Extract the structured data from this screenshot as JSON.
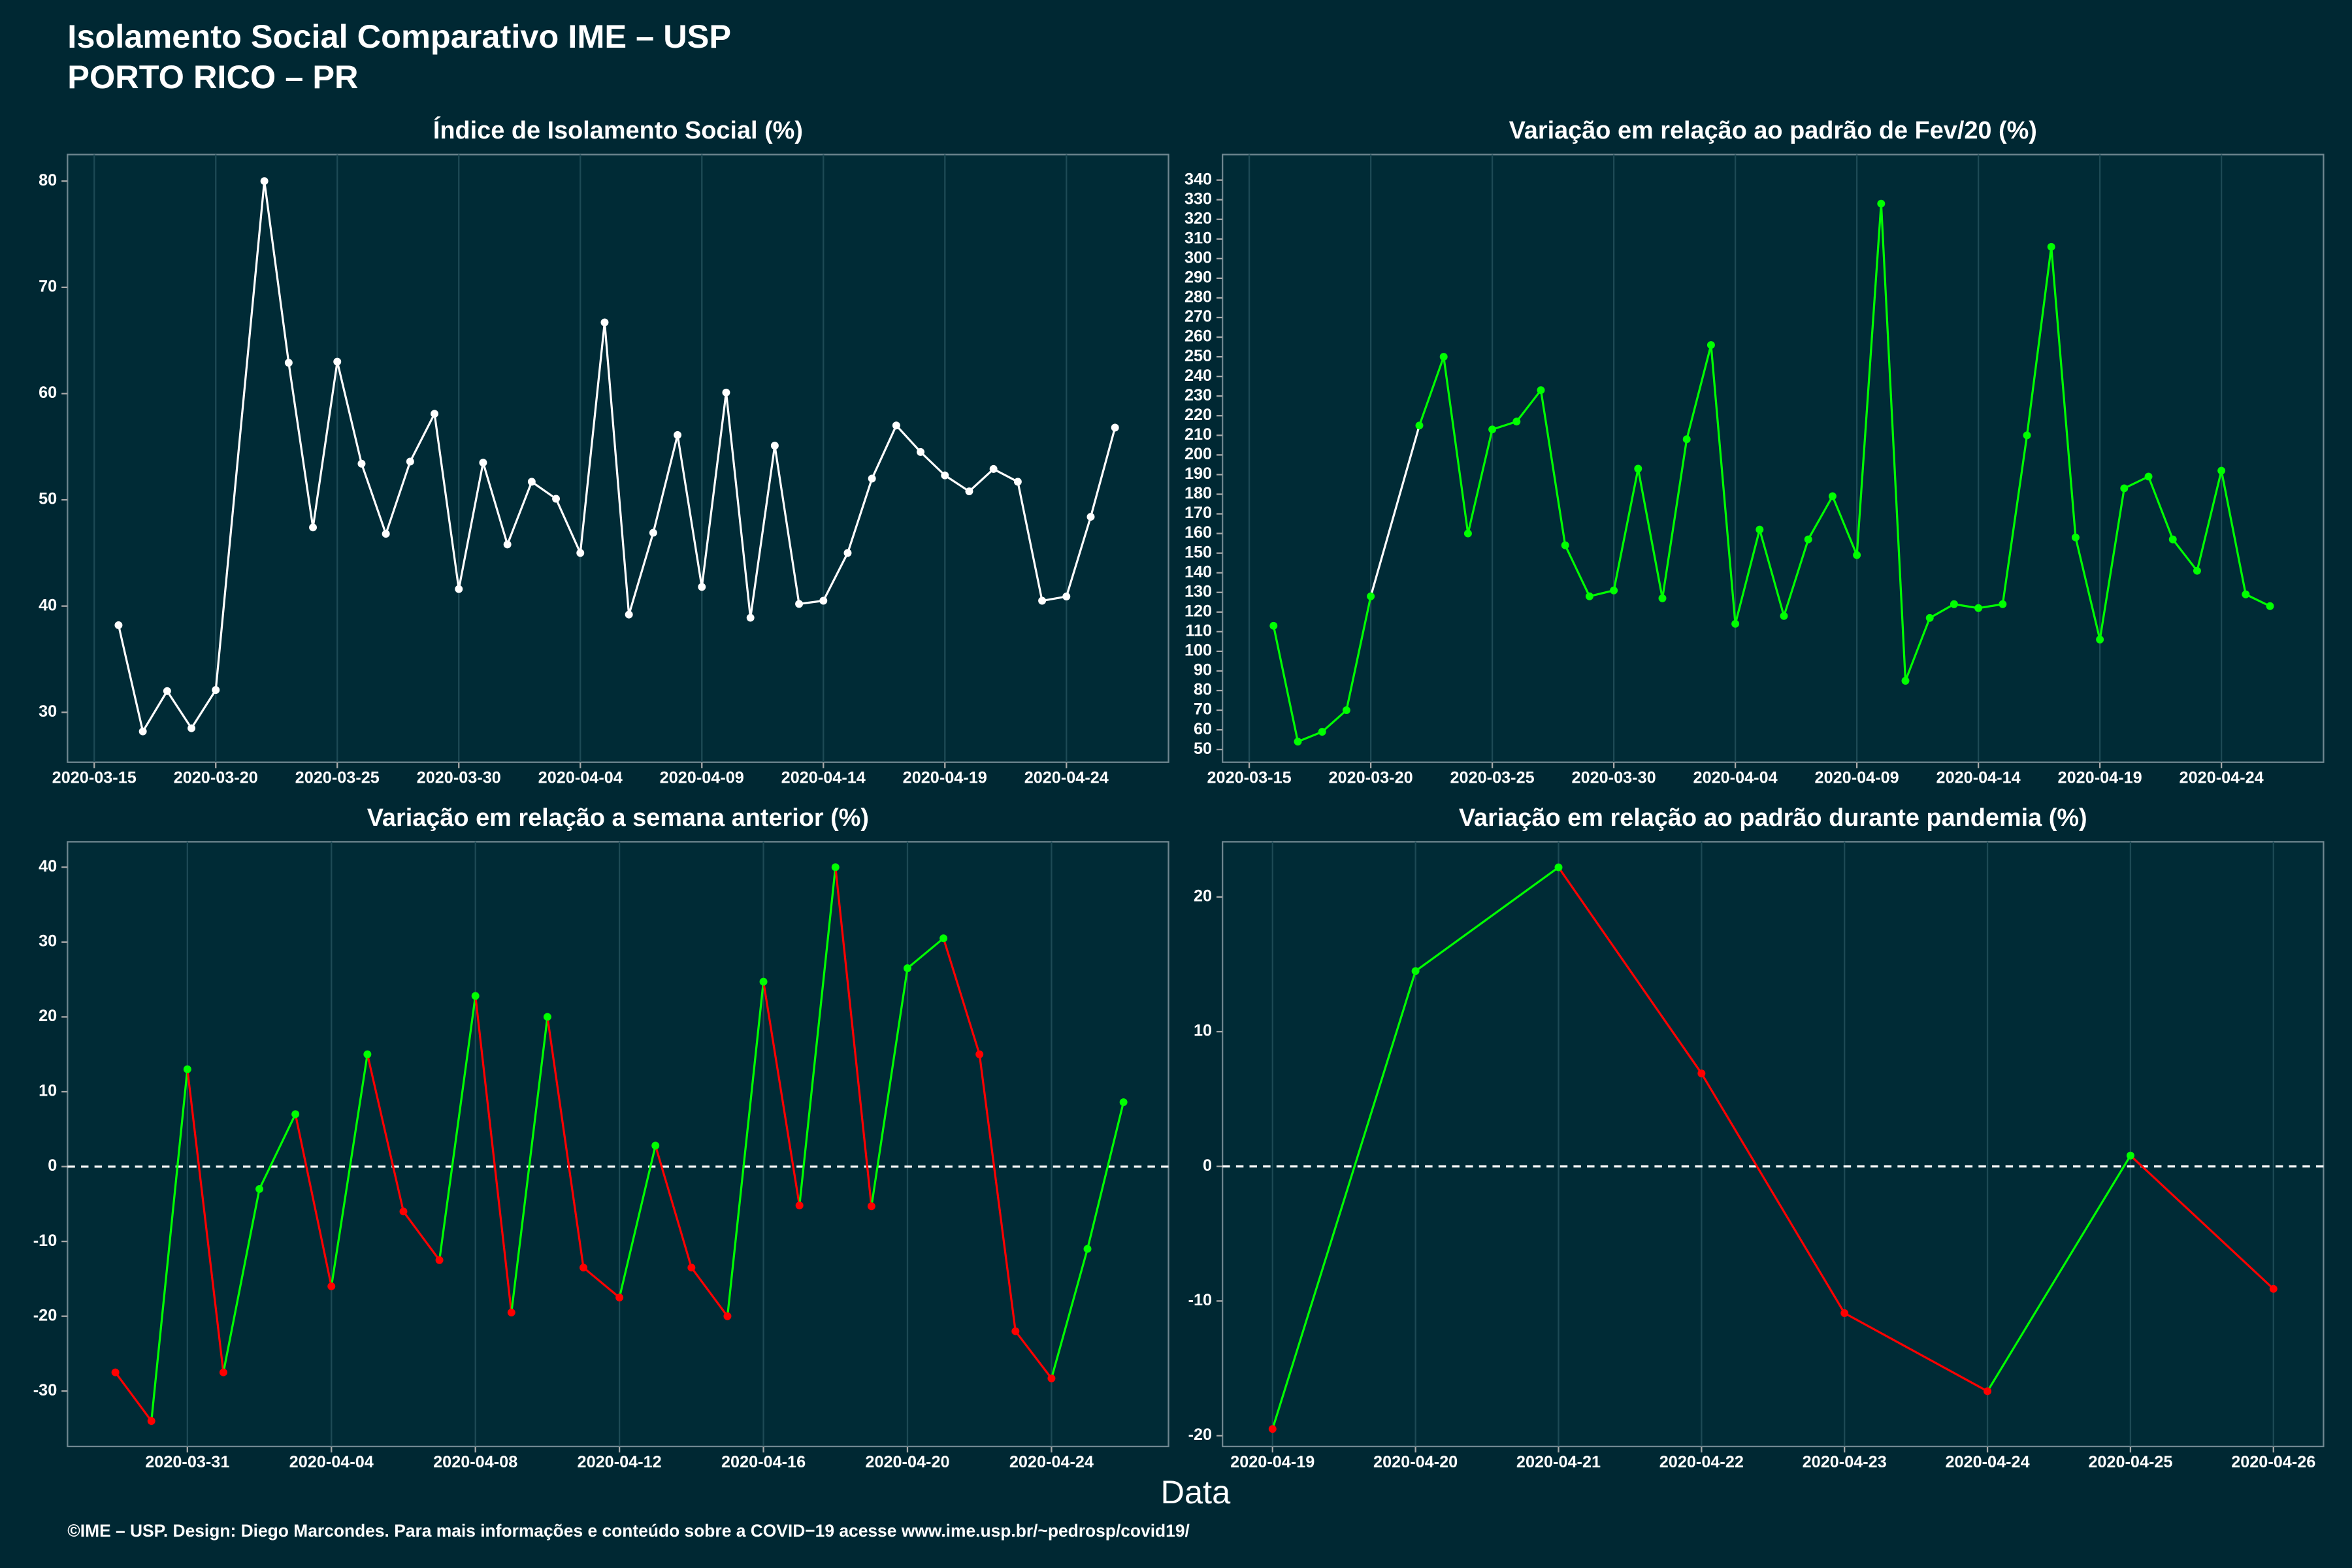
{
  "title": "Isolamento Social Comparativo IME – USP",
  "subtitle": "PORTO RICO – PR",
  "xlabel": "Data",
  "footer": "©IME – USP. Design: Diego Marcondes. Para mais informações e conteúdo sobre a COVID−19 acesse www.ime.usp.br/~pedrosp/covid19/",
  "chart_data": [
    {
      "type": "line",
      "title": "Índice de Isolamento Social (%)",
      "x": [
        "2020-03-16",
        "2020-03-17",
        "2020-03-18",
        "2020-03-19",
        "2020-03-20",
        "2020-03-22",
        "2020-03-23",
        "2020-03-24",
        "2020-03-25",
        "2020-03-26",
        "2020-03-27",
        "2020-03-28",
        "2020-03-29",
        "2020-03-30",
        "2020-03-31",
        "2020-04-01",
        "2020-04-02",
        "2020-04-03",
        "2020-04-04",
        "2020-04-05",
        "2020-04-06",
        "2020-04-07",
        "2020-04-08",
        "2020-04-09",
        "2020-04-10",
        "2020-04-11",
        "2020-04-12",
        "2020-04-13",
        "2020-04-14",
        "2020-04-15",
        "2020-04-16",
        "2020-04-17",
        "2020-04-18",
        "2020-04-19",
        "2020-04-20",
        "2020-04-21",
        "2020-04-22",
        "2020-04-23",
        "2020-04-24",
        "2020-04-25",
        "2020-04-26"
      ],
      "series": [
        {
          "color": "#ffffff",
          "values": [
            38.2,
            28.2,
            32,
            28.5,
            32.1,
            80,
            62.9,
            47.4,
            63,
            53.4,
            46.8,
            53.6,
            58.1,
            41.6,
            53.5,
            45.8,
            51.7,
            50.1,
            45,
            66.7,
            39.2,
            46.9,
            56.1,
            41.8,
            60.1,
            38.9,
            55.1,
            40.2,
            40.5,
            45,
            52,
            57,
            54.5,
            52.3,
            50.8,
            52.9,
            51.7,
            40.5,
            40.9,
            48.4,
            56.8
          ]
        }
      ],
      "xlim": [
        "2020-03-13.9",
        "2020-04-28.2"
      ],
      "xticks": [
        "2020-03-15",
        "2020-03-20",
        "2020-03-25",
        "2020-03-30",
        "2020-04-04",
        "2020-04-09",
        "2020-04-14",
        "2020-04-19",
        "2020-04-24"
      ],
      "ylim": [
        25.3,
        82.5
      ],
      "yticks": [
        30,
        40,
        50,
        60,
        70,
        80
      ]
    },
    {
      "type": "line",
      "title": "Variação em relação ao padrão de Fev/20 (%)",
      "x": [
        "2020-03-16",
        "2020-03-17",
        "2020-03-18",
        "2020-03-19",
        "2020-03-20",
        "2020-03-22",
        "2020-03-23",
        "2020-03-24",
        "2020-03-25",
        "2020-03-26",
        "2020-03-27",
        "2020-03-28",
        "2020-03-29",
        "2020-03-30",
        "2020-03-31",
        "2020-04-01",
        "2020-04-02",
        "2020-04-03",
        "2020-04-04",
        "2020-04-05",
        "2020-04-06",
        "2020-04-07",
        "2020-04-08",
        "2020-04-09",
        "2020-04-10",
        "2020-04-11",
        "2020-04-12",
        "2020-04-13",
        "2020-04-14",
        "2020-04-15",
        "2020-04-16",
        "2020-04-17",
        "2020-04-18",
        "2020-04-19",
        "2020-04-20",
        "2020-04-21",
        "2020-04-22",
        "2020-04-23",
        "2020-04-24",
        "2020-04-25",
        "2020-04-26"
      ],
      "series": [
        {
          "color": "#00ff00",
          "gap_color": "#ffffff",
          "values": [
            113,
            54,
            59,
            70,
            128,
            215,
            250,
            160,
            213,
            217,
            233,
            154,
            128,
            131,
            193,
            127,
            208,
            256,
            114,
            162,
            118,
            157,
            179,
            149,
            328,
            85,
            117,
            124,
            122,
            124,
            210,
            306,
            158,
            106,
            183,
            189,
            157,
            141,
            192,
            129,
            123
          ]
        }
      ],
      "xlim": [
        "2020-03-13.9",
        "2020-04-28.2"
      ],
      "xticks": [
        "2020-03-15",
        "2020-03-20",
        "2020-03-25",
        "2020-03-30",
        "2020-04-04",
        "2020-04-09",
        "2020-04-14",
        "2020-04-19",
        "2020-04-24"
      ],
      "ylim": [
        43.5,
        353
      ],
      "yticks": [
        50,
        60,
        70,
        80,
        90,
        100,
        110,
        120,
        130,
        140,
        150,
        160,
        170,
        180,
        190,
        200,
        210,
        220,
        230,
        240,
        250,
        260,
        270,
        280,
        290,
        300,
        310,
        320,
        330,
        340
      ]
    },
    {
      "type": "line",
      "title": "Variação em relação a semana anterior (%)",
      "x": [
        "2020-03-29",
        "2020-03-30",
        "2020-03-31",
        "2020-04-01",
        "2020-04-02",
        "2020-04-03",
        "2020-04-04",
        "2020-04-05",
        "2020-04-06",
        "2020-04-07",
        "2020-04-08",
        "2020-04-09",
        "2020-04-10",
        "2020-04-11",
        "2020-04-12",
        "2020-04-13",
        "2020-04-14",
        "2020-04-15",
        "2020-04-16",
        "2020-04-17",
        "2020-04-18",
        "2020-04-19",
        "2020-04-20",
        "2020-04-21",
        "2020-04-22",
        "2020-04-23",
        "2020-04-24",
        "2020-04-25",
        "2020-04-26"
      ],
      "series": [
        {
          "up_color": "#00ff00",
          "down_color": "#ff0000",
          "values": [
            -27.5,
            -34,
            13,
            -27.5,
            -3,
            7,
            -16,
            15,
            -6,
            -12.5,
            22.8,
            -19.5,
            20,
            -13.5,
            -17.5,
            2.8,
            -13.5,
            -20,
            24.7,
            -5.2,
            40,
            -5.3,
            26.5,
            30.5,
            15,
            -22,
            -28.3,
            -11,
            8.6
          ]
        }
      ],
      "xlim": [
        "2020-03-27.67",
        "2020-04-27.25"
      ],
      "xticks": [
        "2020-03-31",
        "2020-04-04",
        "2020-04-08",
        "2020-04-12",
        "2020-04-16",
        "2020-04-20",
        "2020-04-24"
      ],
      "ylim": [
        -37.4,
        43.4
      ],
      "yticks": [
        -30,
        -20,
        -10,
        0,
        10,
        20,
        30,
        40
      ],
      "hline": 0
    },
    {
      "type": "line",
      "title": "Variação em relação ao padrão durante pandemia (%)",
      "x": [
        "2020-04-19",
        "2020-04-20",
        "2020-04-21",
        "2020-04-22",
        "2020-04-23",
        "2020-04-24",
        "2020-04-25",
        "2020-04-26"
      ],
      "series": [
        {
          "up_color": "#00ff00",
          "down_color": "#ff0000",
          "values": [
            -19.5,
            14.5,
            22.2,
            6.9,
            -10.9,
            -16.7,
            0.8,
            -9.1
          ]
        }
      ],
      "xlim": [
        "2020-04-18.65",
        "2020-04-26.35"
      ],
      "xticks": [
        "2020-04-19",
        "2020-04-20",
        "2020-04-21",
        "2020-04-22",
        "2020-04-23",
        "2020-04-24",
        "2020-04-25",
        "2020-04-26"
      ],
      "ylim": [
        -20.8,
        24.1
      ],
      "yticks": [
        -20,
        -10,
        0,
        10,
        20
      ],
      "hline": 0
    }
  ]
}
